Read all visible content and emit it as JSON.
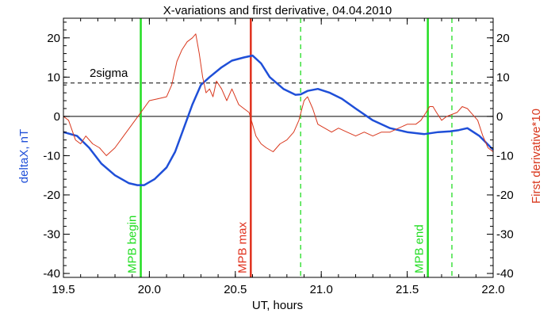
{
  "chart_data": {
    "type": "line",
    "title": "X-variations and first derivative, 04.04.2010",
    "xlabel": "UT, hours",
    "ylabel_left": "deltaX, nT",
    "ylabel_right": "First derivative*10",
    "xlim": [
      19.5,
      22.0
    ],
    "ylim": [
      -41,
      25
    ],
    "x_ticks": [
      19.5,
      20.0,
      20.5,
      21.0,
      21.5,
      22.0
    ],
    "x_tick_labels": [
      "19.5",
      "20.0",
      "20.5",
      "21.0",
      "21.5",
      "22.0"
    ],
    "y_ticks": [
      -40,
      -30,
      -20,
      -10,
      0,
      10,
      20
    ],
    "y_tick_labels": [
      "-40",
      "-30",
      "-20",
      "-10",
      "0",
      "10",
      "20"
    ],
    "threshold": {
      "label": "2sigma",
      "value": 8.5
    },
    "zero_line": 0,
    "colors": {
      "deltaX": "#1f4fd8",
      "derivative": "#d9381e",
      "mpb": "#22dd22",
      "mpb_max": "#e0301c"
    },
    "markers": [
      {
        "label": "MPB begin",
        "x": 19.95,
        "style": "solid",
        "color": "#22dd22"
      },
      {
        "label": "MPB max",
        "x": 20.59,
        "style": "solid",
        "color": "#e0301c"
      },
      {
        "label": "",
        "x": 20.88,
        "style": "dashed",
        "color": "#22dd22"
      },
      {
        "label": "MPB end",
        "x": 21.62,
        "style": "solid",
        "color": "#22dd22"
      },
      {
        "label": "",
        "x": 21.76,
        "style": "dashed",
        "color": "#22dd22"
      }
    ],
    "series": [
      {
        "name": "deltaX, nT",
        "axis": "left",
        "x": [
          19.5,
          19.58,
          19.65,
          19.72,
          19.8,
          19.88,
          19.93,
          19.97,
          20.03,
          20.1,
          20.15,
          20.2,
          20.25,
          20.3,
          20.35,
          20.42,
          20.48,
          20.55,
          20.6,
          20.65,
          20.7,
          20.78,
          20.85,
          20.88,
          20.92,
          20.98,
          21.05,
          21.12,
          21.2,
          21.3,
          21.4,
          21.5,
          21.6,
          21.68,
          21.75,
          21.8,
          21.85,
          21.92,
          22.0
        ],
        "y": [
          -4,
          -5,
          -8,
          -12,
          -15,
          -17,
          -17.5,
          -17.5,
          -16,
          -13,
          -9,
          -3,
          3,
          8,
          10,
          12.5,
          14.2,
          15,
          15.5,
          13.5,
          10,
          7,
          5.5,
          5.6,
          6.5,
          7,
          6,
          4.5,
          2,
          -1,
          -3,
          -4,
          -4.5,
          -4,
          -3.8,
          -3.5,
          -3,
          -5,
          -8.5
        ]
      },
      {
        "name": "First derivative*10",
        "axis": "right",
        "x": [
          19.5,
          19.53,
          19.57,
          19.6,
          19.63,
          19.67,
          19.71,
          19.75,
          19.8,
          19.85,
          19.9,
          19.95,
          20.0,
          20.05,
          20.1,
          20.13,
          20.16,
          20.19,
          20.22,
          20.25,
          20.27,
          20.29,
          20.31,
          20.33,
          20.35,
          20.37,
          20.39,
          20.42,
          20.45,
          20.48,
          20.5,
          20.52,
          20.55,
          20.58,
          20.6,
          20.62,
          20.65,
          20.68,
          20.72,
          20.76,
          20.8,
          20.84,
          20.87,
          20.9,
          20.92,
          20.95,
          20.98,
          21.02,
          21.06,
          21.1,
          21.15,
          21.2,
          21.25,
          21.3,
          21.35,
          21.4,
          21.45,
          21.5,
          21.55,
          21.58,
          21.61,
          21.63,
          21.65,
          21.67,
          21.7,
          21.73,
          21.76,
          21.79,
          21.82,
          21.85,
          21.88,
          21.91,
          21.94,
          21.97,
          22.0
        ],
        "y": [
          0,
          -1,
          -6,
          -7,
          -5,
          -7,
          -8,
          -10,
          -8,
          -5,
          -2,
          1,
          4,
          4.5,
          5,
          8,
          14,
          17,
          19,
          20,
          21,
          16,
          10,
          6,
          7,
          5,
          9,
          7,
          4,
          7,
          5,
          3,
          2,
          1,
          -2,
          -5,
          -7,
          -8,
          -9,
          -7,
          -6,
          -4,
          -1,
          4,
          5,
          2,
          -2,
          -3,
          -4,
          -3,
          -4,
          -5,
          -4,
          -5,
          -4,
          -4,
          -3,
          -2,
          -2,
          -1,
          1,
          2.5,
          2.5,
          1,
          -1,
          0,
          0.5,
          1,
          2.5,
          2,
          0.5,
          -1,
          -5,
          -8,
          -9
        ]
      }
    ]
  }
}
